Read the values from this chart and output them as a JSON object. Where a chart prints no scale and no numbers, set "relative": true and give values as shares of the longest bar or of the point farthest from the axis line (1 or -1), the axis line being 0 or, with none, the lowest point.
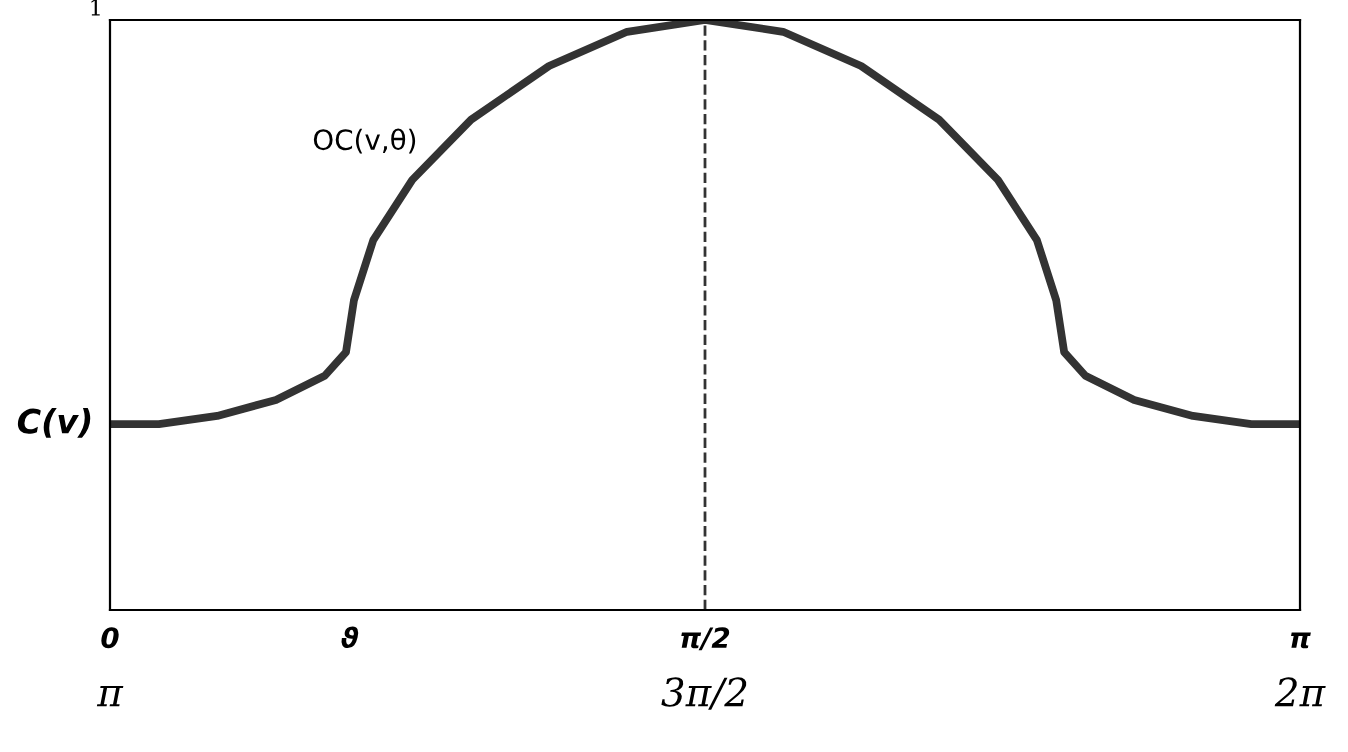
{
  "chart_data": {
    "type": "line",
    "relative": true,
    "x": [
      0,
      0.129,
      0.283,
      0.438,
      0.567,
      0.623,
      0.644,
      0.695,
      0.798,
      0.953,
      1.159,
      1.365,
      1.5708,
      1.777,
      1.983,
      2.189,
      2.344,
      2.447,
      2.498,
      2.519,
      2.575,
      2.704,
      2.859,
      3.013,
      3.1416
    ],
    "series": [
      {
        "color": "#333333",
        "values": [
          0.315,
          0.315,
          0.329,
          0.356,
          0.397,
          0.437,
          0.525,
          0.627,
          0.729,
          0.831,
          0.922,
          0.98,
          1,
          0.98,
          0.922,
          0.831,
          0.729,
          0.627,
          0.525,
          0.437,
          0.397,
          0.356,
          0.329,
          0.315,
          0.315
        ]
      }
    ],
    "xlim": [
      0,
      3.1416
    ],
    "xticks": [
      {
        "value": 0,
        "label": "0"
      },
      {
        "value": 0.633,
        "label": "ϑ"
      },
      {
        "value": 1.5708,
        "label": "π/2"
      },
      {
        "value": 3.1416,
        "label": "π"
      }
    ],
    "x2lim": [
      3.1416,
      6.2832
    ],
    "x2ticks": [
      {
        "value": 3.1416,
        "label": "π"
      },
      {
        "value": 4.7124,
        "label": "3π/2"
      },
      {
        "value": 6.2832,
        "label": "2π"
      }
    ],
    "ref_lines": [
      {
        "axis": "x",
        "value": 1.5708,
        "line_style": "dashed",
        "color": "#333333"
      }
    ],
    "annotations": [
      "1",
      {
        "text": "C(v)",
        "x": 0,
        "y": 0.315
      },
      "OC(v,θ)"
    ],
    "grid": false,
    "legend": false,
    "marker": "none",
    "line_style": "solid"
  }
}
